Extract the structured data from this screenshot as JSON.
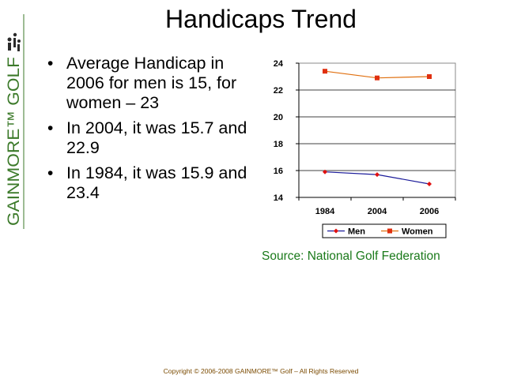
{
  "slide": {
    "title": "Handicaps Trend",
    "logo_text": "GAINMORE™ GOLF",
    "bullets": [
      "Average Handicap in 2006 for men is 15, for women – 23",
      "In 2004, it was 15.7 and 22.9",
      "In 1984, it was 15.9 and 23.4"
    ],
    "source": "Source: National Golf Federation",
    "footer": "Copyright © 2006-2008 GAINMORE™ Golf – All Rights Reserved"
  },
  "colors": {
    "men": "#1a1a99",
    "men_marker": "#e01010",
    "women": "#e07010",
    "women_marker": "#e03010",
    "source_text": "#1b7a1b",
    "logo": "#3c7a2a"
  },
  "chart_data": {
    "type": "line",
    "title": "",
    "xlabel": "",
    "ylabel": "",
    "categories": [
      "1984",
      "2004",
      "2006"
    ],
    "series": [
      {
        "name": "Men",
        "values": [
          15.9,
          15.7,
          15.0
        ]
      },
      {
        "name": "Women",
        "values": [
          23.4,
          22.9,
          23.0
        ]
      }
    ],
    "ylim": [
      14,
      24
    ],
    "yticks": [
      "14",
      "16",
      "18",
      "20",
      "22",
      "24"
    ],
    "grid": true,
    "legend_position": "bottom"
  }
}
